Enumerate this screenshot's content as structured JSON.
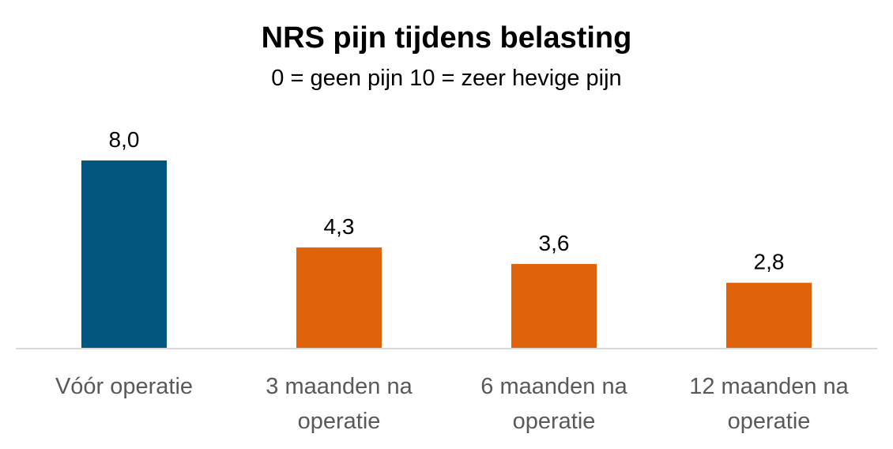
{
  "chart_data": {
    "type": "bar",
    "title": "NRS pijn tijdens belasting",
    "subtitle": "0 = geen pijn  10 = zeer hevige pijn",
    "categories": [
      [
        "Vóór operatie"
      ],
      [
        "3 maanden na",
        "operatie"
      ],
      [
        "6 maanden na",
        "operatie"
      ],
      [
        "12 maanden na",
        "operatie"
      ]
    ],
    "values": [
      8.0,
      4.3,
      3.6,
      2.8
    ],
    "data_labels": [
      "8,0",
      "4,3",
      "3,6",
      "2,8"
    ],
    "bar_colors": [
      "#00567F",
      "#E0620A",
      "#E0620A",
      "#E0620A"
    ],
    "ylim": [
      0,
      10
    ],
    "grid": false,
    "legend": "none",
    "xlabel": "",
    "ylabel": ""
  }
}
